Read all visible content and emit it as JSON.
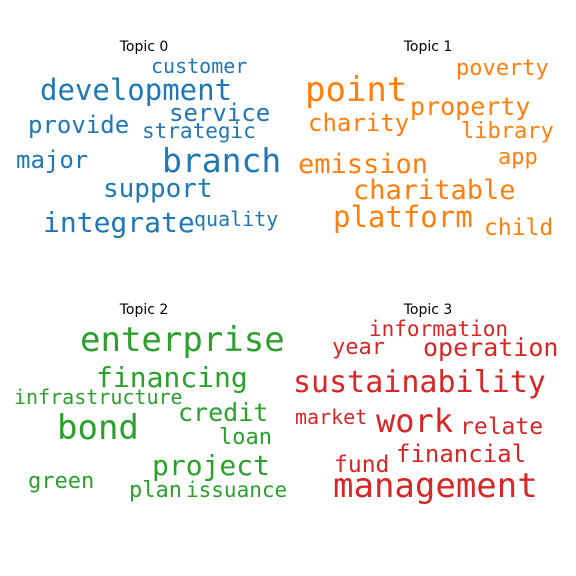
{
  "topics": [
    {
      "title": "Topic 0",
      "color": "#1f77b4",
      "words": [
        "customer",
        "development",
        "service",
        "provide",
        "strategic",
        "major",
        "branch",
        "support",
        "integrate",
        "quality"
      ]
    },
    {
      "title": "Topic 1",
      "color": "#ff7f0e",
      "words": [
        "poverty",
        "point",
        "property",
        "charity",
        "library",
        "app",
        "emission",
        "charitable",
        "platform",
        "child"
      ]
    },
    {
      "title": "Topic 2",
      "color": "#2ca02c",
      "words": [
        "enterprise",
        "financing",
        "infrastructure",
        "credit",
        "bond",
        "loan",
        "project",
        "green",
        "plan",
        "issuance"
      ]
    },
    {
      "title": "Topic 3",
      "color": "#d62728",
      "words": [
        "information",
        "year",
        "operation",
        "sustainability",
        "market",
        "work",
        "relate",
        "financial",
        "fund",
        "management"
      ]
    }
  ]
}
